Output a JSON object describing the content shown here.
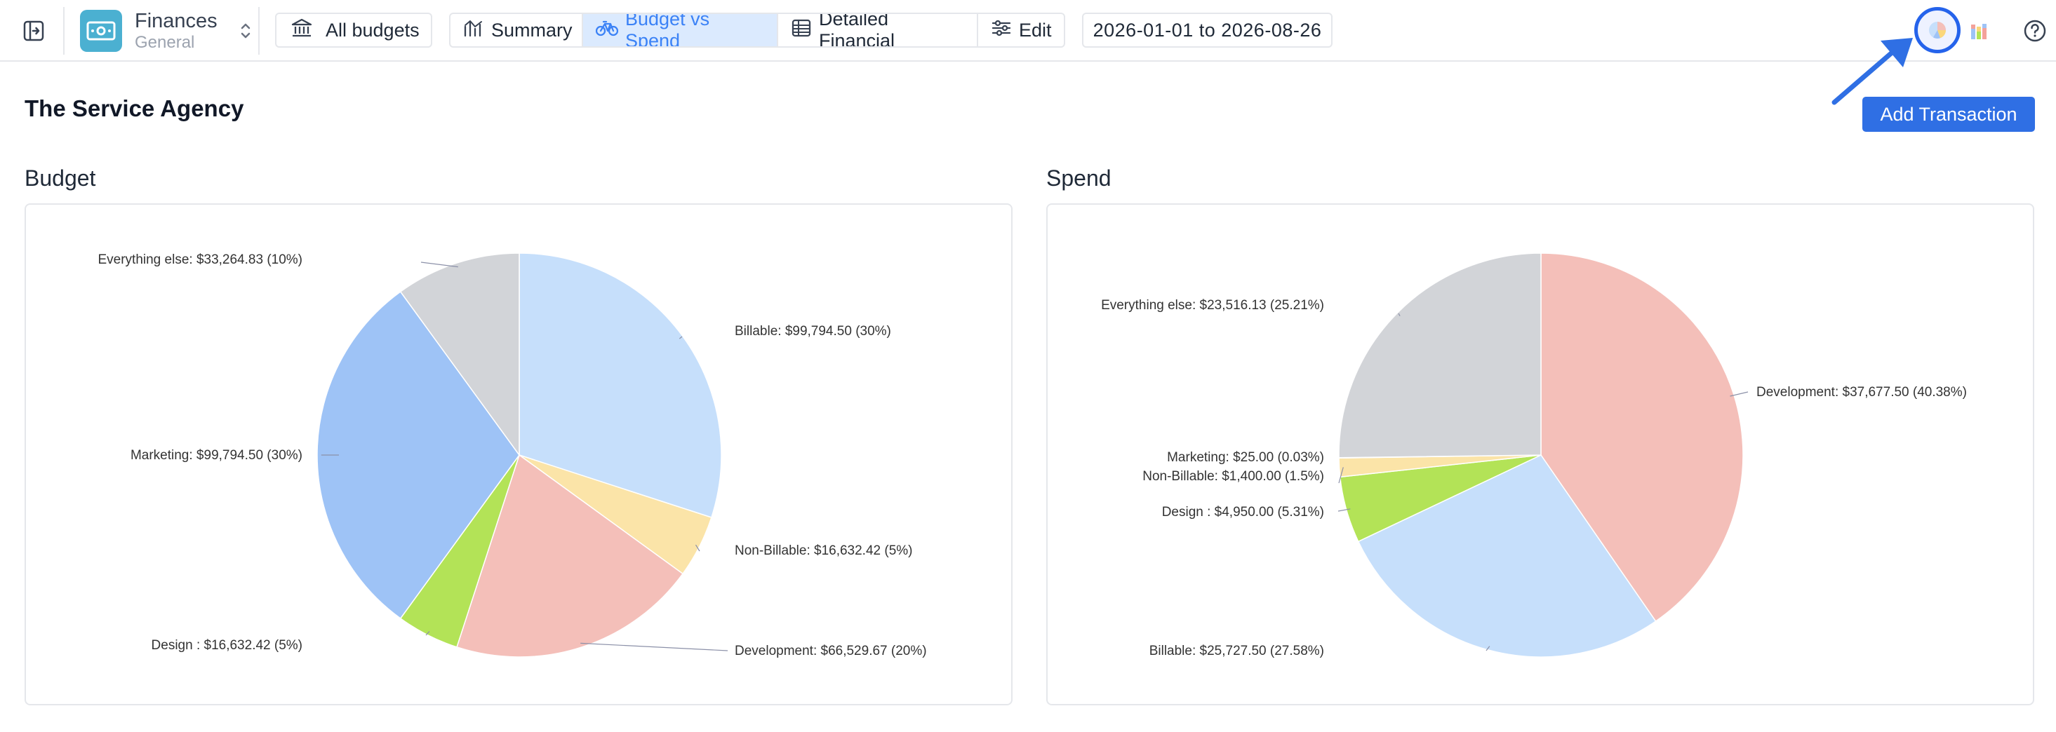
{
  "workspace": {
    "title": "Finances",
    "subtitle": "General"
  },
  "toolbar": {
    "all_budgets": "All budgets",
    "tabs": [
      {
        "label": "Summary"
      },
      {
        "label": "Budget vs Spend"
      },
      {
        "label": "Detailed Financial"
      },
      {
        "label": "Edit"
      }
    ],
    "date_range": "2026-01-01 to 2026-08-26"
  },
  "page": {
    "title": "The Service Agency",
    "add_button": "Add Transaction"
  },
  "colors": {
    "accent": "#2f6fe4",
    "billable": "#c6dffb",
    "non_billable": "#fbe4a8",
    "development": "#f4bfb9",
    "design": "#b3e357",
    "marketing": "#9ec3f6",
    "everything_else": "#d2d4d8"
  },
  "icons": {
    "sidebar_toggle": "sidebar-toggle-icon",
    "workspace_logo": "money-icon",
    "switcher": "chevron-updown-icon",
    "all_budgets": "bank-icon",
    "summary": "chart-icon",
    "budget_vs_spend": "bicycle-icon",
    "detailed_financial": "table-icon",
    "edit": "sliders-icon",
    "pie_view": "pie-chart-icon",
    "bar_view": "bar-chart-icon",
    "help": "help-icon"
  },
  "chart_data": [
    {
      "type": "pie",
      "title": "Budget",
      "slices": [
        {
          "label": "Billable",
          "value": 99794.5,
          "percent": 30,
          "display": "Billable: $99,794.50 (30%)",
          "color": "#c6dffb"
        },
        {
          "label": "Non-Billable",
          "value": 16632.42,
          "percent": 5,
          "display": "Non-Billable: $16,632.42 (5%)",
          "color": "#fbe4a8"
        },
        {
          "label": "Development",
          "value": 66529.67,
          "percent": 20,
          "display": "Development: $66,529.67 (20%)",
          "color": "#f4bfb9"
        },
        {
          "label": "Design ",
          "value": 16632.42,
          "percent": 5,
          "display": "Design : $16,632.42 (5%)",
          "color": "#b3e357"
        },
        {
          "label": "Marketing",
          "value": 99794.5,
          "percent": 30,
          "display": "Marketing: $99,794.50 (30%)",
          "color": "#9ec3f6"
        },
        {
          "label": "Everything else",
          "value": 33264.83,
          "percent": 10,
          "display": "Everything else: $33,264.83 (10%)",
          "color": "#d2d4d8"
        }
      ]
    },
    {
      "type": "pie",
      "title": "Spend",
      "slices": [
        {
          "label": "Development",
          "value": 37677.5,
          "percent": 40.38,
          "display": "Development: $37,677.50 (40.38%)",
          "color": "#f4bfb9"
        },
        {
          "label": "Billable",
          "value": 25727.5,
          "percent": 27.58,
          "display": "Billable: $25,727.50 (27.58%)",
          "color": "#c6dffb"
        },
        {
          "label": "Design ",
          "value": 4950.0,
          "percent": 5.31,
          "display": "Design : $4,950.00 (5.31%)",
          "color": "#b3e357"
        },
        {
          "label": "Non-Billable",
          "value": 1400.0,
          "percent": 1.5,
          "display": "Non-Billable: $1,400.00 (1.5%)",
          "color": "#fbe4a8"
        },
        {
          "label": "Marketing",
          "value": 25.0,
          "percent": 0.03,
          "display": "Marketing: $25.00 (0.03%)",
          "color": "#fbe4a8"
        },
        {
          "label": "Everything else",
          "value": 23516.13,
          "percent": 25.21,
          "display": "Everything else: $23,516.13 (25.21%)",
          "color": "#d2d4d8"
        }
      ]
    }
  ]
}
